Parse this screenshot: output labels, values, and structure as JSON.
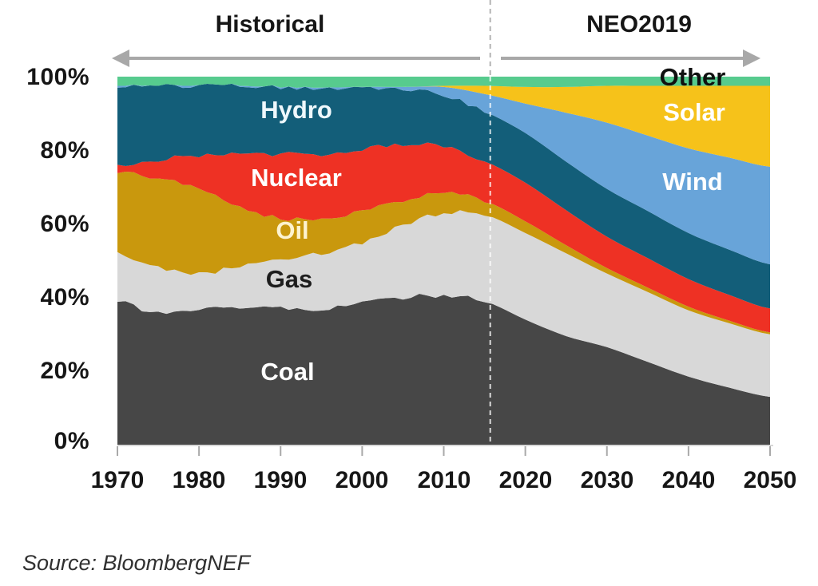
{
  "chart_data": {
    "type": "area",
    "stacked": true,
    "unit": "%",
    "ylim": [
      0,
      100
    ],
    "x_range": [
      1970,
      2050
    ],
    "divider_year": 2015.7,
    "periods": [
      {
        "label": "Historical"
      },
      {
        "label": "NEO2019"
      }
    ],
    "yticks": [
      "100%",
      "80%",
      "60%",
      "40%",
      "20%",
      "0%"
    ],
    "xticks": [
      "1970",
      "1980",
      "1990",
      "2000",
      "2010",
      "2020",
      "2030",
      "2040",
      "2050"
    ],
    "x": [
      1970,
      1975,
      1980,
      1985,
      1990,
      1995,
      2000,
      2005,
      2010,
      2015,
      2020,
      2025,
      2030,
      2035,
      2040,
      2045,
      2050
    ],
    "series": [
      {
        "name": "Coal",
        "color": "#474747",
        "label_color": "#ffffff",
        "values": [
          39,
          35.5,
          37,
          37.5,
          37,
          37,
          38.5,
          40,
          40.5,
          39,
          34,
          29.5,
          26.5,
          22.5,
          18.5,
          15.5,
          13
        ]
      },
      {
        "name": "Gas",
        "color": "#d8d8d8",
        "label_color": "#1d1d1d",
        "values": [
          13,
          12.5,
          9.5,
          11,
          13.5,
          15,
          16.5,
          19.5,
          22.5,
          23.5,
          23.5,
          22.5,
          20,
          19,
          18,
          17.5,
          17
        ]
      },
      {
        "name": "Oil",
        "color": "#c9980d",
        "label_color": "#fdf3cf",
        "values": [
          22,
          24.5,
          23,
          16,
          11,
          9.5,
          8.5,
          7,
          5.5,
          3.8,
          3.2,
          2.2,
          1.5,
          1.2,
          1,
          0.7,
          0.5
        ]
      },
      {
        "name": "Nuclear",
        "color": "#ee3124",
        "label_color": "#ffffff",
        "values": [
          2,
          5,
          9,
          14.5,
          17.5,
          17.5,
          17,
          15,
          12.5,
          10.8,
          10.5,
          9.5,
          8.5,
          8,
          7.5,
          7,
          6.5
        ]
      },
      {
        "name": "Hydro",
        "color": "#135e79",
        "label_color": "#eef8fc",
        "values": [
          21.5,
          20,
          19,
          18.5,
          18,
          18,
          16.5,
          15,
          14,
          13.5,
          13.5,
          13.2,
          13,
          12.8,
          12.5,
          12.3,
          12
        ]
      },
      {
        "name": "Wind",
        "color": "#68a4d9",
        "label_color": "#ffffff",
        "values": [
          0,
          0,
          0,
          0,
          0,
          0,
          0.2,
          0.7,
          2.2,
          4.7,
          8,
          13.3,
          18,
          20.5,
          23,
          25,
          26.5
        ]
      },
      {
        "name": "Solar",
        "color": "#f6c21a",
        "label_color": "#ffffff",
        "values": [
          0,
          0,
          0,
          0,
          0,
          0,
          0,
          0,
          0.3,
          2.2,
          4.5,
          7,
          10,
          13.5,
          17,
          19.5,
          22
        ]
      },
      {
        "name": "Other",
        "color": "#57cb8e",
        "label_color": "#101010",
        "values": [
          2.5,
          2.5,
          2.5,
          2.5,
          3,
          3,
          2.8,
          2.8,
          2.5,
          2.5,
          2.8,
          2.8,
          2.5,
          2.5,
          2.5,
          2.5,
          2.5
        ]
      }
    ],
    "source": "Source: BloombergNEF",
    "arrow_color": "#a8a8a8"
  }
}
